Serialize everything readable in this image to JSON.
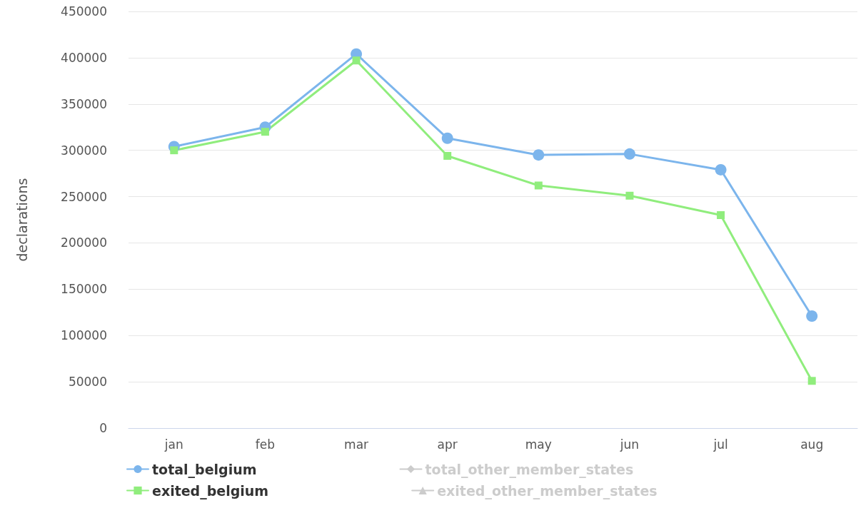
{
  "chart_data": {
    "type": "line",
    "ylabel": "declarations",
    "categories": [
      "jan",
      "feb",
      "mar",
      "apr",
      "may",
      "jun",
      "jul",
      "aug"
    ],
    "series": [
      {
        "name": "total_belgium",
        "color": "#7cb5ec",
        "marker": "circle",
        "values": [
          304000,
          325000,
          404000,
          313000,
          295000,
          296000,
          279000,
          121000
        ]
      },
      {
        "name": "total_other_member_states",
        "color": "#cccccc",
        "marker": "diamond",
        "values": [
          null,
          null,
          null,
          null,
          null,
          null,
          null,
          null
        ]
      },
      {
        "name": "exited_belgium",
        "color": "#90ed7d",
        "marker": "square",
        "values": [
          300000,
          320000,
          397000,
          294000,
          262000,
          251000,
          230000,
          51000
        ]
      },
      {
        "name": "exited_other_member_states",
        "color": "#cccccc",
        "marker": "triangle",
        "values": [
          null,
          null,
          null,
          null,
          null,
          null,
          null,
          null
        ]
      }
    ],
    "ylim": [
      0,
      450000
    ],
    "yticks": [
      0,
      50000,
      100000,
      150000,
      200000,
      250000,
      300000,
      350000,
      400000,
      450000
    ],
    "grid": "y",
    "legend": "bottom"
  }
}
